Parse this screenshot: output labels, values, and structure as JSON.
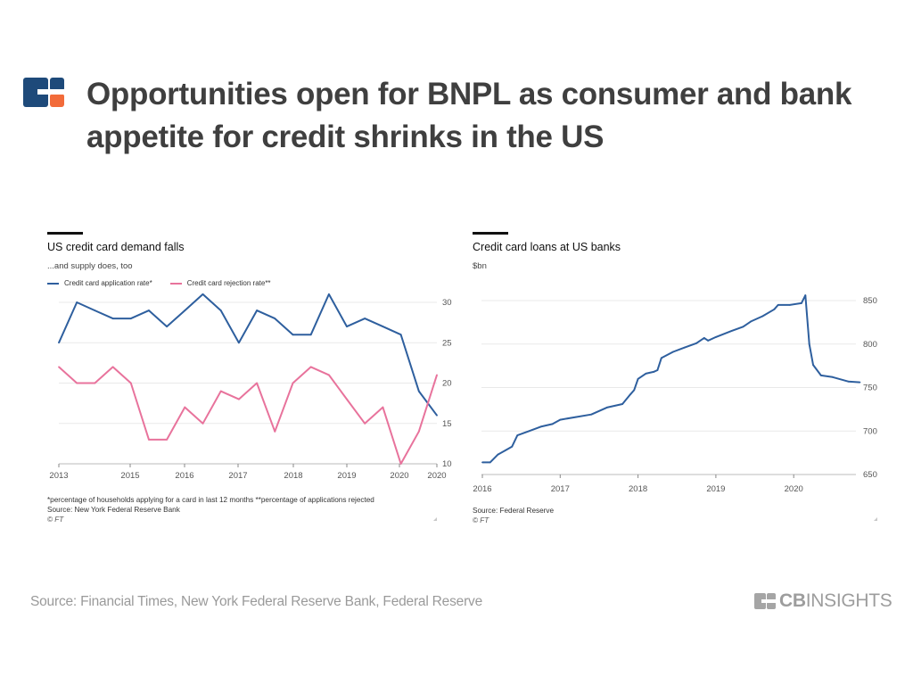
{
  "slide": {
    "title_line1": "Opportunities open for BNPL as consumer and bank",
    "title_line2": "appetite for credit shrinks in the US",
    "source": "Source: Financial Times, New York Federal Reserve Bank, Federal Reserve",
    "brand_bold": "CB",
    "brand_rest": "INSIGHTS"
  },
  "colors": {
    "application_line": "#2e5f9e",
    "rejection_line": "#e8739c",
    "loans_line": "#2e5f9e",
    "logo_navy": "#1e4a7a",
    "logo_orange": "#f26b3a",
    "gridline": "#e9e9e9"
  },
  "chart_data": [
    {
      "type": "line",
      "title": "US credit card demand falls",
      "subtitle": "...and supply does, too",
      "x_ticks": [
        "2013",
        "2015",
        "2016",
        "2017",
        "2018",
        "2019",
        "2020",
        "2020"
      ],
      "y_ticks": [
        "10",
        "15",
        "20",
        "25",
        "30"
      ],
      "ylim": [
        10,
        31
      ],
      "grid": true,
      "legend_position": "top-left",
      "series": [
        {
          "name": "Credit card application rate*",
          "color": "#2e5f9e",
          "values": [
            25,
            30,
            29,
            28,
            28,
            29,
            27,
            29,
            31,
            29,
            25,
            29,
            28,
            26,
            26,
            31,
            27,
            28,
            27,
            26,
            19,
            16
          ]
        },
        {
          "name": "Credit card rejection rate**",
          "color": "#e8739c",
          "values": [
            22,
            20,
            20,
            22,
            20,
            13,
            13,
            17,
            15,
            19,
            18,
            20,
            14,
            20,
            22,
            21,
            18,
            15,
            17,
            10,
            14,
            21
          ]
        }
      ],
      "footnote": "*percentage of households applying for a card in last 12 months **percentage of applications rejected",
      "source": "Source: New York Federal Reserve Bank",
      "credit": "© FT"
    },
    {
      "type": "line",
      "title": "Credit card loans at US banks",
      "subtitle": "$bn",
      "x_ticks": [
        "2016",
        "2017",
        "2018",
        "2019",
        "2020"
      ],
      "y_ticks": [
        "650",
        "700",
        "750",
        "800",
        "850"
      ],
      "ylim": [
        650,
        858
      ],
      "grid": true,
      "series": [
        {
          "color": "#2e5f9e",
          "x": [
            2016.0,
            2016.1,
            2016.2,
            2016.3,
            2016.38,
            2016.45,
            2016.6,
            2016.75,
            2016.9,
            2017.0,
            2017.2,
            2017.4,
            2017.6,
            2017.8,
            2017.9,
            2017.95,
            2018.0,
            2018.1,
            2018.2,
            2018.25,
            2018.3,
            2018.45,
            2018.6,
            2018.75,
            2018.85,
            2018.9,
            2019.0,
            2019.2,
            2019.35,
            2019.45,
            2019.6,
            2019.75,
            2019.8,
            2019.95,
            2020.1,
            2020.15,
            2020.2,
            2020.25,
            2020.35,
            2020.5,
            2020.7,
            2020.85
          ],
          "values": [
            664,
            664,
            673,
            678,
            682,
            695,
            700,
            705,
            708,
            713,
            716,
            719,
            727,
            731,
            742,
            747,
            760,
            766,
            768,
            770,
            784,
            791,
            796,
            801,
            807,
            804,
            808,
            815,
            820,
            826,
            832,
            840,
            845,
            845,
            847,
            856,
            800,
            776,
            764,
            762,
            757,
            756
          ]
        }
      ],
      "source": "Source: Federal Reserve",
      "credit": "© FT"
    }
  ]
}
